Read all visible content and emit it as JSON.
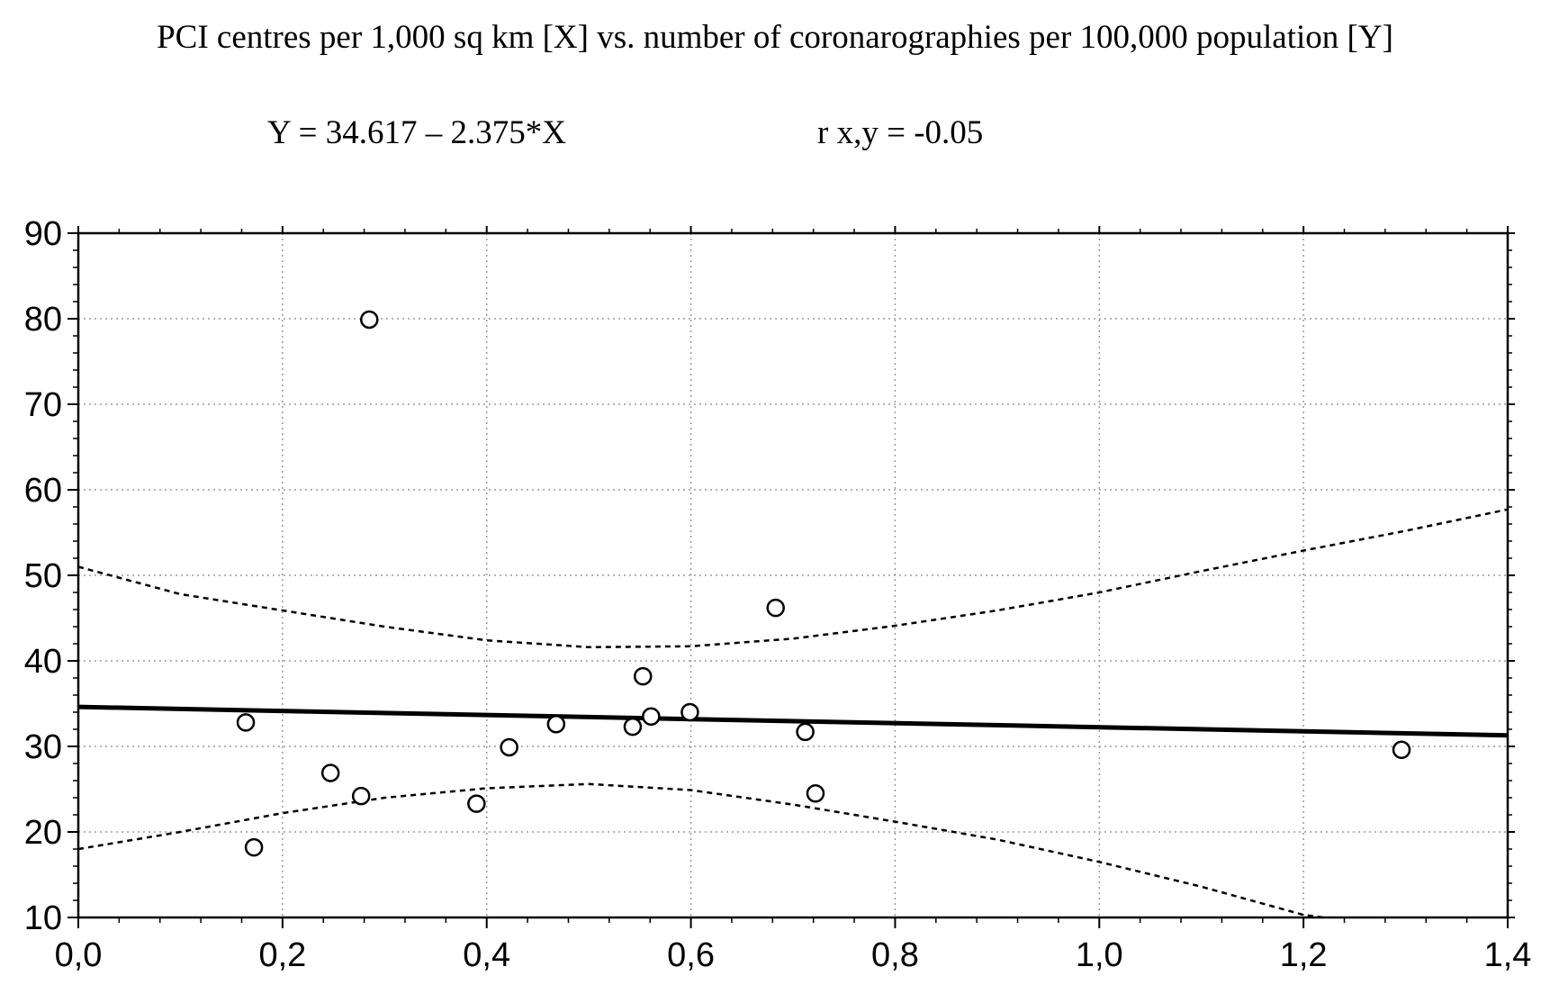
{
  "chart_data": {
    "type": "scatter",
    "title": "PCI centres per 1,000 sq km [X] vs. number of coronarographies per 100,000 population [Y]",
    "equation": "Y = 34.617 – 2.375*X",
    "correlation": "r x,y = -0.05",
    "xlabel": "",
    "ylabel": "",
    "xlim": [
      0,
      1.4
    ],
    "ylim": [
      10,
      90
    ],
    "x_ticks": [
      {
        "value": 0.0,
        "label": "0,0"
      },
      {
        "value": 0.2,
        "label": "0,2"
      },
      {
        "value": 0.4,
        "label": "0,4"
      },
      {
        "value": 0.6,
        "label": "0,6"
      },
      {
        "value": 0.8,
        "label": "0,8"
      },
      {
        "value": 1.0,
        "label": "1,0"
      },
      {
        "value": 1.2,
        "label": "1,2"
      },
      {
        "value": 1.4,
        "label": "1,4"
      }
    ],
    "y_ticks": [
      {
        "value": 10,
        "label": "10"
      },
      {
        "value": 20,
        "label": "20"
      },
      {
        "value": 30,
        "label": "30"
      },
      {
        "value": 40,
        "label": "40"
      },
      {
        "value": 50,
        "label": "50"
      },
      {
        "value": 60,
        "label": "60"
      },
      {
        "value": 70,
        "label": "70"
      },
      {
        "value": 80,
        "label": "80"
      },
      {
        "value": 90,
        "label": "90"
      }
    ],
    "grid": true,
    "points": [
      {
        "x": 0.164,
        "y": 32.8
      },
      {
        "x": 0.172,
        "y": 18.2
      },
      {
        "x": 0.247,
        "y": 26.9
      },
      {
        "x": 0.277,
        "y": 24.2
      },
      {
        "x": 0.285,
        "y": 79.9
      },
      {
        "x": 0.39,
        "y": 23.3
      },
      {
        "x": 0.422,
        "y": 29.9
      },
      {
        "x": 0.468,
        "y": 32.6
      },
      {
        "x": 0.543,
        "y": 32.3
      },
      {
        "x": 0.553,
        "y": 38.2
      },
      {
        "x": 0.561,
        "y": 33.5
      },
      {
        "x": 0.599,
        "y": 34.0
      },
      {
        "x": 0.683,
        "y": 46.2
      },
      {
        "x": 0.712,
        "y": 31.7
      },
      {
        "x": 0.722,
        "y": 24.5
      },
      {
        "x": 1.296,
        "y": 29.6
      }
    ],
    "regression": {
      "intercept": 34.617,
      "slope": -2.375
    },
    "confidence_band": {
      "upper": [
        {
          "x": 0.0,
          "y": 51.0
        },
        {
          "x": 0.1,
          "y": 47.8
        },
        {
          "x": 0.2,
          "y": 45.9
        },
        {
          "x": 0.3,
          "y": 44.0
        },
        {
          "x": 0.4,
          "y": 42.4
        },
        {
          "x": 0.5,
          "y": 41.6
        },
        {
          "x": 0.6,
          "y": 41.7
        },
        {
          "x": 0.7,
          "y": 42.6
        },
        {
          "x": 0.8,
          "y": 44.1
        },
        {
          "x": 0.9,
          "y": 45.9
        },
        {
          "x": 1.0,
          "y": 48.0
        },
        {
          "x": 1.1,
          "y": 50.5
        },
        {
          "x": 1.2,
          "y": 52.9
        },
        {
          "x": 1.3,
          "y": 55.2
        },
        {
          "x": 1.4,
          "y": 57.7
        }
      ],
      "lower": [
        {
          "x": 0.0,
          "y": 18.0
        },
        {
          "x": 0.1,
          "y": 20.0
        },
        {
          "x": 0.2,
          "y": 22.2
        },
        {
          "x": 0.3,
          "y": 24.0
        },
        {
          "x": 0.4,
          "y": 25.1
        },
        {
          "x": 0.5,
          "y": 25.6
        },
        {
          "x": 0.6,
          "y": 24.9
        },
        {
          "x": 0.7,
          "y": 23.2
        },
        {
          "x": 0.8,
          "y": 21.2
        },
        {
          "x": 0.9,
          "y": 19.1
        },
        {
          "x": 1.0,
          "y": 16.5
        },
        {
          "x": 1.1,
          "y": 13.6
        },
        {
          "x": 1.2,
          "y": 10.3
        },
        {
          "x": 1.22,
          "y": 10.0
        }
      ]
    }
  }
}
